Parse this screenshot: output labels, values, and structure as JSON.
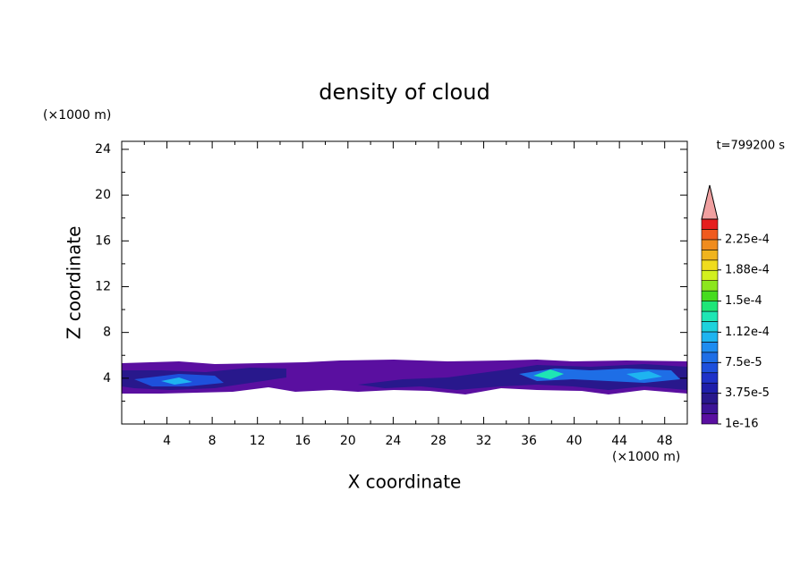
{
  "chart_data": {
    "type": "contour",
    "title": "density of cloud",
    "x_label": "X coordinate",
    "y_label": "Z coordinate",
    "x_unit": "(×1000 m)",
    "y_unit": "(×1000 m)",
    "time_label": "t=799200 s",
    "xlim": [
      0,
      50
    ],
    "ylim": [
      0,
      24.7
    ],
    "xticks": [
      4,
      8,
      12,
      16,
      20,
      24,
      28,
      32,
      36,
      40,
      44,
      48
    ],
    "yticks": [
      4,
      8,
      12,
      16,
      20,
      24
    ],
    "clim": [
      1e-16,
      0.00025
    ],
    "cticks": [
      1e-16,
      {
        "value": 3.75e-05,
        "label": "3.75e-5"
      },
      {
        "value": 7.5e-05,
        "label": "7.5e-5"
      },
      {
        "value": 0.000112,
        "label": "1.12e-4"
      },
      {
        "value": 0.00015,
        "label": "1.5e-4"
      },
      {
        "value": 0.000188,
        "label": "1.88e-4"
      },
      {
        "value": 0.000225,
        "label": "2.25e-4"
      }
    ],
    "level_colors": [
      "#5a0fa0",
      "#3c1496",
      "#28188c",
      "#1e1eaa",
      "#1e32c8",
      "#1e50dc",
      "#1e6ee6",
      "#1e8cf0",
      "#1eb4f0",
      "#1ed2dc",
      "#1ee6b4",
      "#1ee678",
      "#46dc1e",
      "#8ce61e",
      "#d2f01e",
      "#f0dc1e",
      "#f0b41e",
      "#f08c1e",
      "#f05a1e",
      "#e61e1e"
    ],
    "extend_color": "#f0a0a0"
  }
}
